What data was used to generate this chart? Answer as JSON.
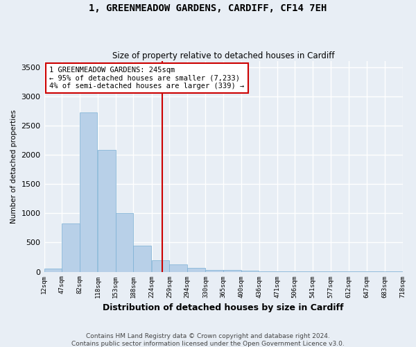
{
  "title": "1, GREENMEADOW GARDENS, CARDIFF, CF14 7EH",
  "subtitle": "Size of property relative to detached houses in Cardiff",
  "xlabel": "Distribution of detached houses by size in Cardiff",
  "ylabel": "Number of detached properties",
  "bar_color": "#b8d0e8",
  "bar_edge_color": "#7aafd4",
  "vline_x": 245,
  "vline_color": "#cc0000",
  "annotation_title": "1 GREENMEADOW GARDENS: 245sqm",
  "annotation_line1": "← 95% of detached houses are smaller (7,233)",
  "annotation_line2": "4% of semi-detached houses are larger (339) →",
  "annotation_box_edge_color": "#cc0000",
  "bin_left_edges": [
    12,
    47,
    82,
    118,
    153,
    188,
    224,
    259,
    294,
    330,
    365,
    400,
    436,
    471,
    506,
    541,
    577,
    612,
    647,
    683
  ],
  "bin_values": [
    50,
    830,
    2720,
    2080,
    1000,
    450,
    200,
    130,
    70,
    30,
    25,
    15,
    10,
    5,
    3,
    2,
    1,
    1,
    1,
    1
  ],
  "bin_width": 35,
  "tick_labels": [
    "12sqm",
    "47sqm",
    "82sqm",
    "118sqm",
    "153sqm",
    "188sqm",
    "224sqm",
    "259sqm",
    "294sqm",
    "330sqm",
    "365sqm",
    "400sqm",
    "436sqm",
    "471sqm",
    "506sqm",
    "541sqm",
    "577sqm",
    "612sqm",
    "647sqm",
    "683sqm",
    "718sqm"
  ],
  "tick_positions": [
    12,
    47,
    82,
    118,
    153,
    188,
    224,
    259,
    294,
    330,
    365,
    400,
    436,
    471,
    506,
    541,
    577,
    612,
    647,
    683,
    718
  ],
  "xlim": [
    12,
    718
  ],
  "ylim": [
    0,
    3600
  ],
  "yticks": [
    0,
    500,
    1000,
    1500,
    2000,
    2500,
    3000,
    3500
  ],
  "footer1": "Contains HM Land Registry data © Crown copyright and database right 2024.",
  "footer2": "Contains public sector information licensed under the Open Government Licence v3.0.",
  "fig_bg_color": "#e8eef5",
  "plot_bg_color": "#e8eef5",
  "grid_color": "#ffffff",
  "title_fontsize": 10,
  "subtitle_fontsize": 8.5,
  "xlabel_fontsize": 9,
  "ylabel_fontsize": 7.5,
  "tick_fontsize": 6.5,
  "ytick_fontsize": 8,
  "footer_fontsize": 6.5,
  "annotation_fontsize": 7.5
}
